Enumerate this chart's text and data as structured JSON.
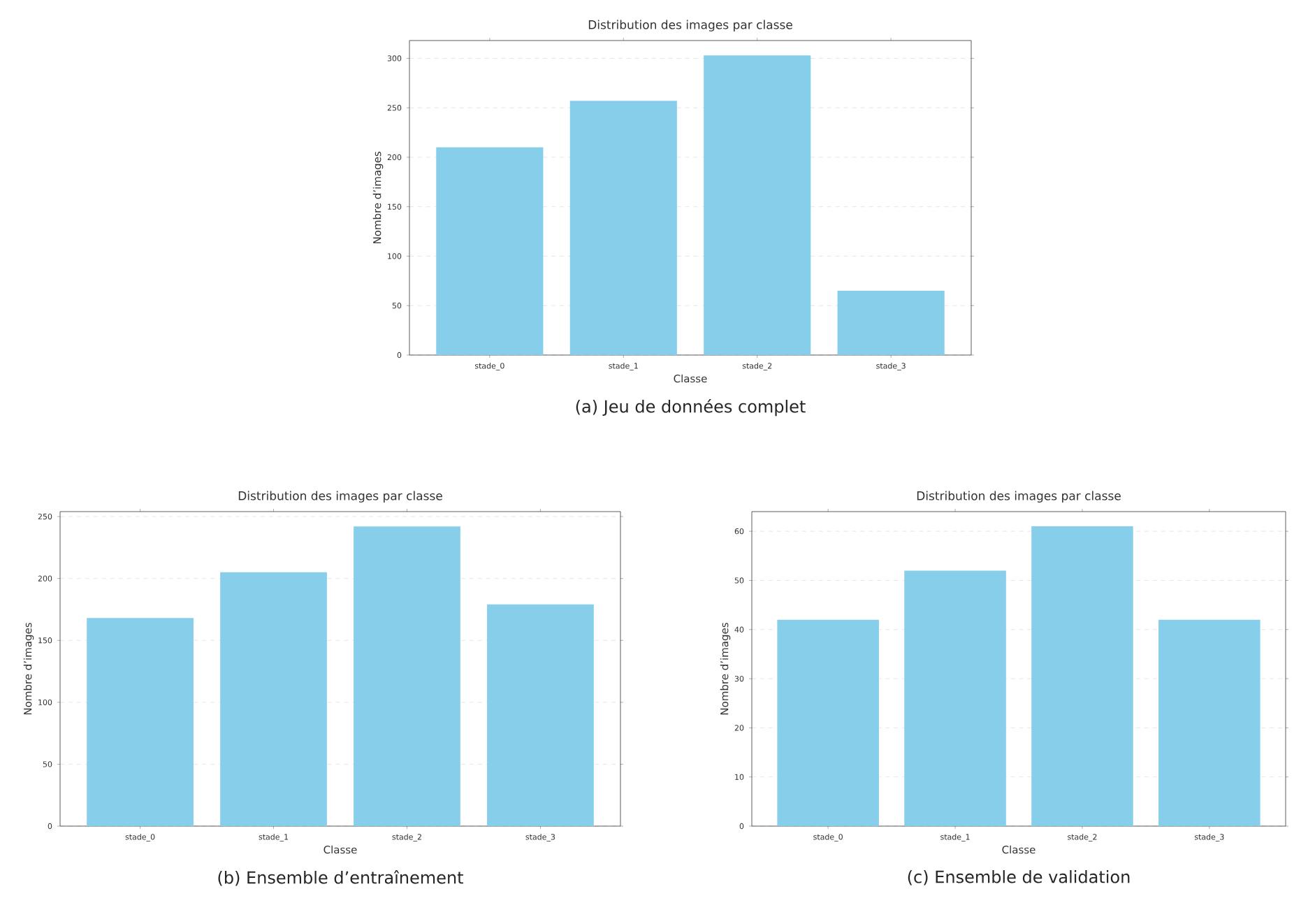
{
  "chart_data": [
    {
      "type": "bar",
      "title": "Distribution des images par classe",
      "xlabel": "Classe",
      "ylabel": "Nombre d’images",
      "categories": [
        "stade_0",
        "stade_1",
        "stade_2",
        "stade_3"
      ],
      "values": [
        210,
        257,
        303,
        65
      ],
      "color": "#87ceeb",
      "ylim": [
        0,
        318
      ],
      "yticks": [
        0,
        50,
        100,
        150,
        200,
        250,
        300
      ],
      "grid": "y",
      "annotations": [
        "(a) Jeu de données complet"
      ]
    },
    {
      "type": "bar",
      "title": "Distribution des images par classe",
      "xlabel": "Classe",
      "ylabel": "Nombre d’images",
      "categories": [
        "stade_0",
        "stade_1",
        "stade_2",
        "stade_3"
      ],
      "values": [
        168,
        205,
        242,
        179
      ],
      "color": "#87ceeb",
      "ylim": [
        0,
        254
      ],
      "yticks": [
        0,
        50,
        100,
        150,
        200,
        250
      ],
      "grid": "y",
      "annotations": [
        "(b) Ensemble d’entraînement"
      ]
    },
    {
      "type": "bar",
      "title": "Distribution des images par classe",
      "xlabel": "Classe",
      "ylabel": "Nombre d’images",
      "categories": [
        "stade_0",
        "stade_1",
        "stade_2",
        "stade_3"
      ],
      "values": [
        42,
        52,
        61,
        42
      ],
      "color": "#87ceeb",
      "ylim": [
        0,
        64
      ],
      "yticks": [
        0,
        10,
        20,
        30,
        40,
        50,
        60
      ],
      "grid": "y",
      "annotations": [
        "(c) Ensemble de validation"
      ]
    }
  ]
}
